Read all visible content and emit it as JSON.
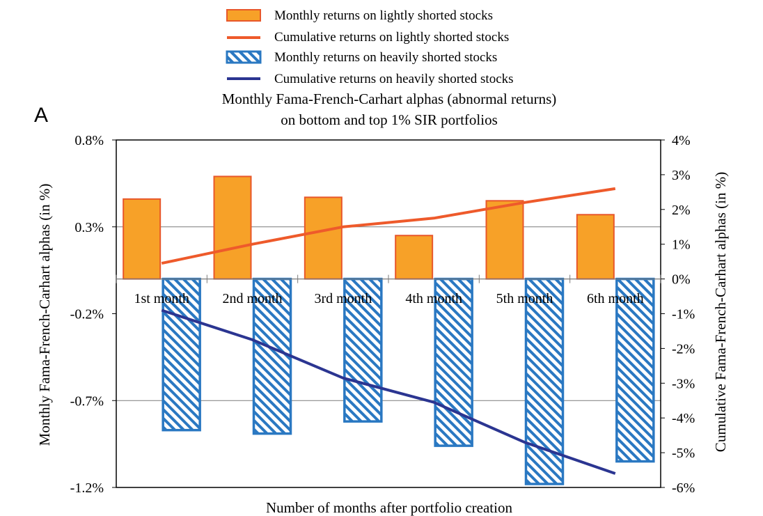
{
  "panel_label": "A",
  "chart_data": {
    "type": "bar",
    "title": "Monthly Fama-French-Carhart alphas (abnormal returns)",
    "subtitle": "on bottom and top 1% SIR portfolios",
    "xlabel": "Number of months after portfolio creation",
    "ylabel_left": "Monthly  Fama-French-Carhart alphas (in %)",
    "ylabel_right": "Cumulative  Fama-French-Carhart alphas (in %)",
    "categories": [
      "1st month",
      "2nd month",
      "3rd month",
      "4th month",
      "5th month",
      "6th month"
    ],
    "left_axis": {
      "ylim": [
        -1.2,
        0.8
      ],
      "ticks": [
        "0.8%",
        "0.3%",
        "-0.2%",
        "-0.7%",
        "-1.2%"
      ],
      "tick_values": [
        0.8,
        0.3,
        -0.2,
        -0.7,
        -1.2
      ]
    },
    "right_axis": {
      "ylim": [
        -6,
        4
      ],
      "ticks": [
        "4%",
        "3%",
        "2%",
        "1%",
        "0%",
        "-1%",
        "-2%",
        "-3%",
        "-4%",
        "-5%",
        "-6%"
      ],
      "tick_values": [
        4,
        3,
        2,
        1,
        0,
        -1,
        -2,
        -3,
        -4,
        -5,
        -6
      ]
    },
    "gridlines": [
      0.3,
      -0.7
    ],
    "series": [
      {
        "name": "Monthly returns on lightly shorted stocks",
        "kind": "bar",
        "axis": "left",
        "color": "#F7A128",
        "edge": "#E8572A",
        "values": [
          0.46,
          0.59,
          0.47,
          0.25,
          0.45,
          0.37
        ]
      },
      {
        "name": "Cumulative returns on lightly shorted stocks",
        "kind": "line",
        "axis": "right",
        "color": "#EE5A2B",
        "values": [
          0.45,
          1.0,
          1.5,
          1.75,
          2.2,
          2.6
        ]
      },
      {
        "name": "Monthly returns on heavily shorted stocks",
        "kind": "bar",
        "axis": "left",
        "color": "#2A78C2",
        "pattern": "hatch",
        "values": [
          -0.87,
          -0.89,
          -0.82,
          -0.96,
          -1.18,
          -1.05
        ]
      },
      {
        "name": "Cumulative returns on heavily shorted stocks",
        "kind": "line",
        "axis": "right",
        "color": "#2B3591",
        "values": [
          -0.9,
          -1.75,
          -2.85,
          -3.55,
          -4.7,
          -5.6
        ]
      }
    ],
    "legend_position": "top"
  }
}
